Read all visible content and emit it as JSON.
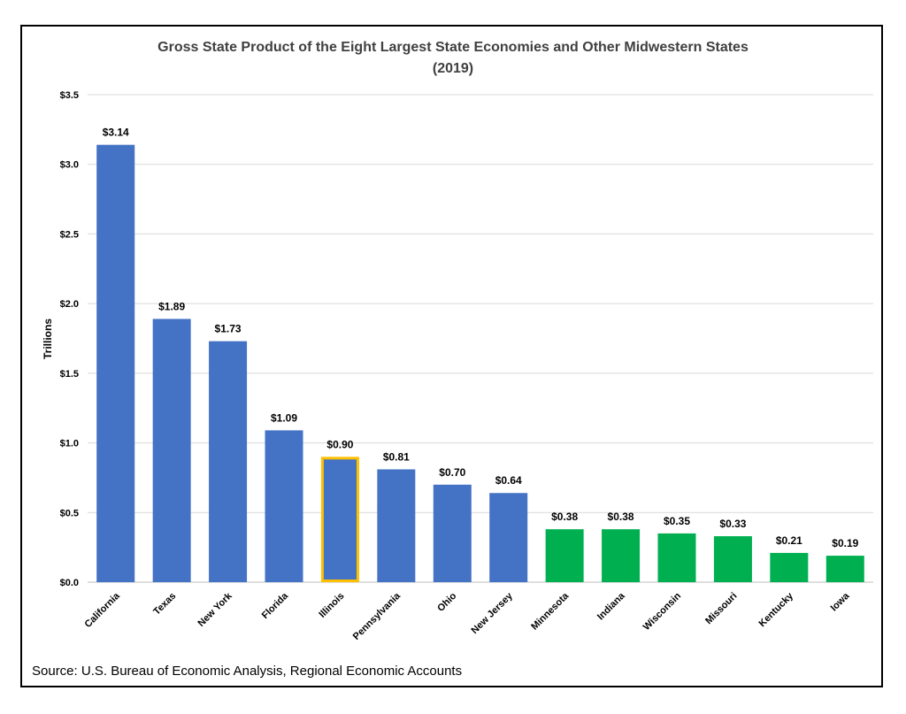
{
  "chart_data": {
    "type": "bar",
    "title_line1": "Gross State Product of the Eight Largest State Economies and Other Midwestern States",
    "title_line2": "(2019)",
    "xlabel": "",
    "ylabel": "Trillions",
    "ylim": [
      0,
      3.5
    ],
    "yticks": [
      0,
      0.5,
      1.0,
      1.5,
      2.0,
      2.5,
      3.0,
      3.5
    ],
    "ytick_labels": [
      "$0.0",
      "$0.5",
      "$1.0",
      "$1.5",
      "$2.0",
      "$2.5",
      "$3.0",
      "$3.5"
    ],
    "grid": true,
    "categories": [
      "California",
      "Texas",
      "New York",
      "Florida",
      "Illinois",
      "Pennsylvania",
      "Ohio",
      "New Jersey",
      "Minnesota",
      "Indiana",
      "Wisconsin",
      "Missouri",
      "Kentucky",
      "Iowa"
    ],
    "values": [
      3.14,
      1.89,
      1.73,
      1.09,
      0.9,
      0.81,
      0.7,
      0.64,
      0.38,
      0.38,
      0.35,
      0.33,
      0.21,
      0.19
    ],
    "data_labels": [
      "$3.14",
      "$1.89",
      "$1.73",
      "$1.09",
      "$0.90",
      "$0.81",
      "$0.70",
      "$0.64",
      "$0.38",
      "$0.38",
      "$0.35",
      "$0.33",
      "$0.21",
      "$0.19"
    ],
    "groups": [
      "largest",
      "largest",
      "largest",
      "largest",
      "largest",
      "largest",
      "largest",
      "largest",
      "midwest",
      "midwest",
      "midwest",
      "midwest",
      "midwest",
      "midwest"
    ],
    "highlight": "Illinois",
    "colors": {
      "largest": "#4472c4",
      "midwest": "#00b050",
      "highlight_border": "#ffc000"
    }
  },
  "source_text": "Source: U.S. Bureau of Economic Analysis, Regional Economic Accounts"
}
